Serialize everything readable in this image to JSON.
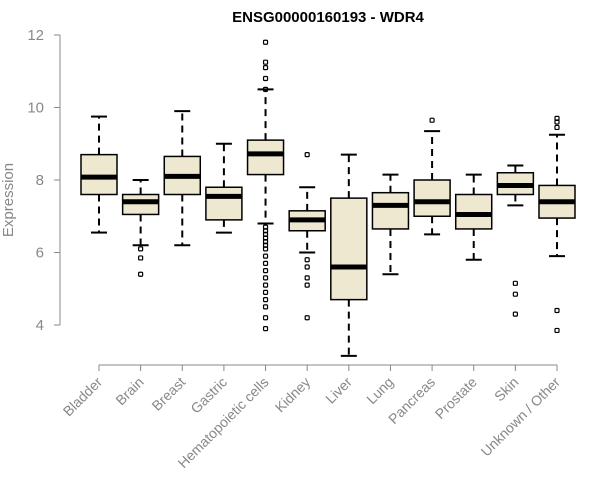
{
  "chart_data": {
    "type": "boxplot",
    "title": "ENSG00000160193 - WDR4",
    "xlabel": "",
    "ylabel": "Expression",
    "ylim": [
      3.2,
      12.0
    ],
    "yticks": [
      4,
      6,
      8,
      10,
      12
    ],
    "categories": [
      "Bladder",
      "Brain",
      "Breast",
      "Gastric",
      "Hematopoietic cells",
      "Kidney",
      "Liver",
      "Lung",
      "Pancreas",
      "Prostate",
      "Skin",
      "Unknown / Other"
    ],
    "boxes": [
      {
        "name": "Bladder",
        "whisker_low": 6.55,
        "q1": 7.6,
        "median": 8.08,
        "q3": 8.7,
        "whisker_high": 9.75,
        "outliers": []
      },
      {
        "name": "Brain",
        "whisker_low": 6.2,
        "q1": 7.05,
        "median": 7.4,
        "q3": 7.6,
        "whisker_high": 8.0,
        "outliers": [
          6.1,
          5.85,
          5.4
        ]
      },
      {
        "name": "Breast",
        "whisker_low": 6.2,
        "q1": 7.6,
        "median": 8.1,
        "q3": 8.65,
        "whisker_high": 9.9,
        "outliers": []
      },
      {
        "name": "Gastric",
        "whisker_low": 6.55,
        "q1": 6.9,
        "median": 7.55,
        "q3": 7.8,
        "whisker_high": 9.0,
        "outliers": []
      },
      {
        "name": "Hematopoietic cells",
        "whisker_low": 6.8,
        "q1": 8.15,
        "median": 8.72,
        "q3": 9.1,
        "whisker_high": 10.5,
        "outliers": [
          11.8,
          11.25,
          11.1,
          10.8,
          10.5,
          6.7,
          6.6,
          6.5,
          6.4,
          6.3,
          6.2,
          6.1,
          5.9,
          5.7,
          5.5,
          5.3,
          5.1,
          4.9,
          4.7,
          4.5,
          4.2,
          3.9
        ]
      },
      {
        "name": "Kidney",
        "whisker_low": 6.0,
        "q1": 6.6,
        "median": 6.9,
        "q3": 7.15,
        "whisker_high": 7.8,
        "outliers": [
          8.7,
          5.8,
          5.6,
          5.3,
          5.1,
          4.2
        ]
      },
      {
        "name": "Liver",
        "whisker_low": 3.15,
        "q1": 4.7,
        "median": 5.6,
        "q3": 7.5,
        "whisker_high": 8.7,
        "outliers": []
      },
      {
        "name": "Lung",
        "whisker_low": 5.4,
        "q1": 6.65,
        "median": 7.3,
        "q3": 7.65,
        "whisker_high": 8.15,
        "outliers": []
      },
      {
        "name": "Pancreas",
        "whisker_low": 6.5,
        "q1": 7.0,
        "median": 7.4,
        "q3": 8.0,
        "whisker_high": 9.35,
        "outliers": [
          9.65
        ]
      },
      {
        "name": "Prostate",
        "whisker_low": 5.8,
        "q1": 6.65,
        "median": 7.05,
        "q3": 7.6,
        "whisker_high": 8.15,
        "outliers": []
      },
      {
        "name": "Skin",
        "whisker_low": 7.3,
        "q1": 7.6,
        "median": 7.85,
        "q3": 8.2,
        "whisker_high": 8.4,
        "outliers": [
          5.15,
          4.85,
          4.3
        ]
      },
      {
        "name": "Unknown / Other",
        "whisker_low": 5.9,
        "q1": 6.95,
        "median": 7.4,
        "q3": 7.85,
        "whisker_high": 9.25,
        "outliers": [
          9.7,
          9.6,
          9.45,
          4.4,
          3.85
        ]
      }
    ]
  },
  "colors": {
    "box_fill": "#efe8d1",
    "axis": "#888888",
    "text_gray": "#888888"
  }
}
